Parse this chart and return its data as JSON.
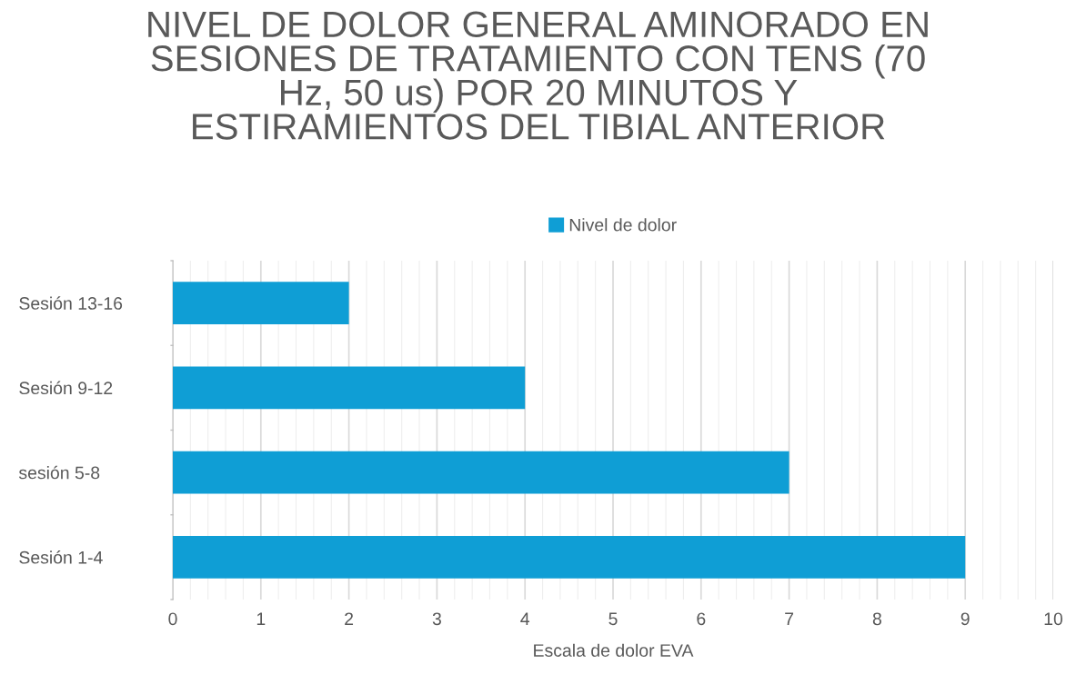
{
  "chart_data": {
    "type": "bar",
    "orientation": "horizontal",
    "title": "NIVEL DE DOLOR GENERAL AMINORADO EN\nSESIONES DE TRATAMIENTO CON TENS (70\nHz, 50 us) POR 20 MINUTOS Y\nESTIRAMIENTOS DEL TIBIAL ANTERIOR",
    "xlabel": "Escala de dolor EVA",
    "categories": [
      "Sesión 13-16",
      "Sesión 9-12",
      "sesión 5-8",
      "Sesión 1-4"
    ],
    "series": [
      {
        "name": "Nivel de dolor",
        "color": "#0f9ed5",
        "values": [
          2,
          4,
          7,
          9
        ]
      }
    ],
    "xlim": [
      0,
      10
    ],
    "xticks": [
      0,
      1,
      2,
      3,
      4,
      5,
      6,
      7,
      8,
      9,
      10
    ],
    "grid": "x",
    "legend": "top"
  }
}
